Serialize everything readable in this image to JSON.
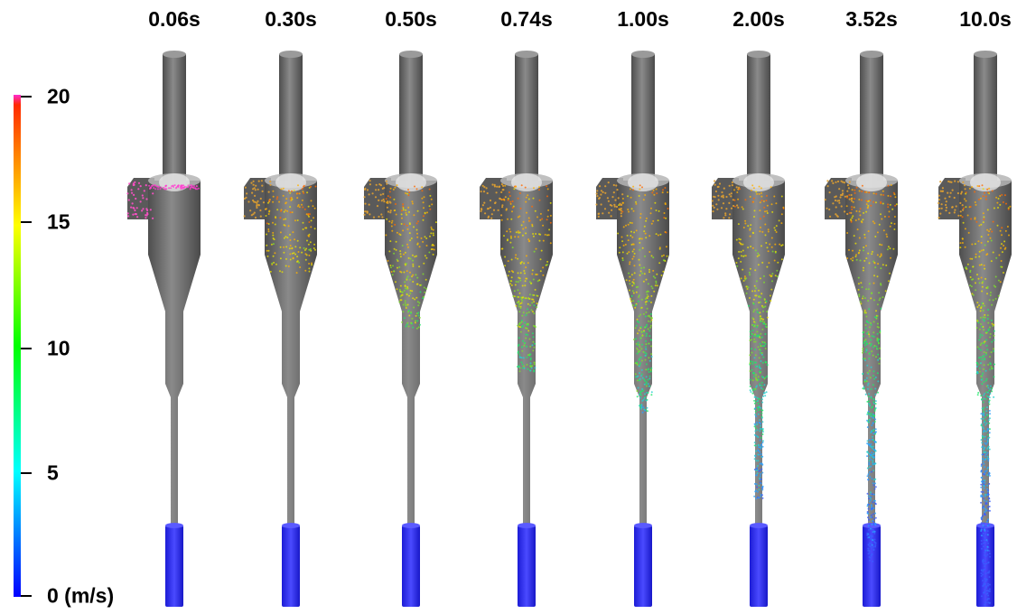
{
  "time_labels": [
    "0.06s",
    "0.30s",
    "0.50s",
    "0.74s",
    "1.00s",
    "2.00s",
    "3.52s",
    "10.0s"
  ],
  "colorbar": {
    "ticks": [
      "20",
      "15",
      "10",
      "5",
      "0 (m/s)"
    ],
    "colors": [
      "#ff2bd0",
      "#ff2a00",
      "#ffff00",
      "#00ff00",
      "#00ffff",
      "#0000ff"
    ]
  },
  "fill_levels": [
    0.02,
    0.22,
    0.35,
    0.45,
    0.55,
    0.75,
    0.9,
    1.0
  ]
}
